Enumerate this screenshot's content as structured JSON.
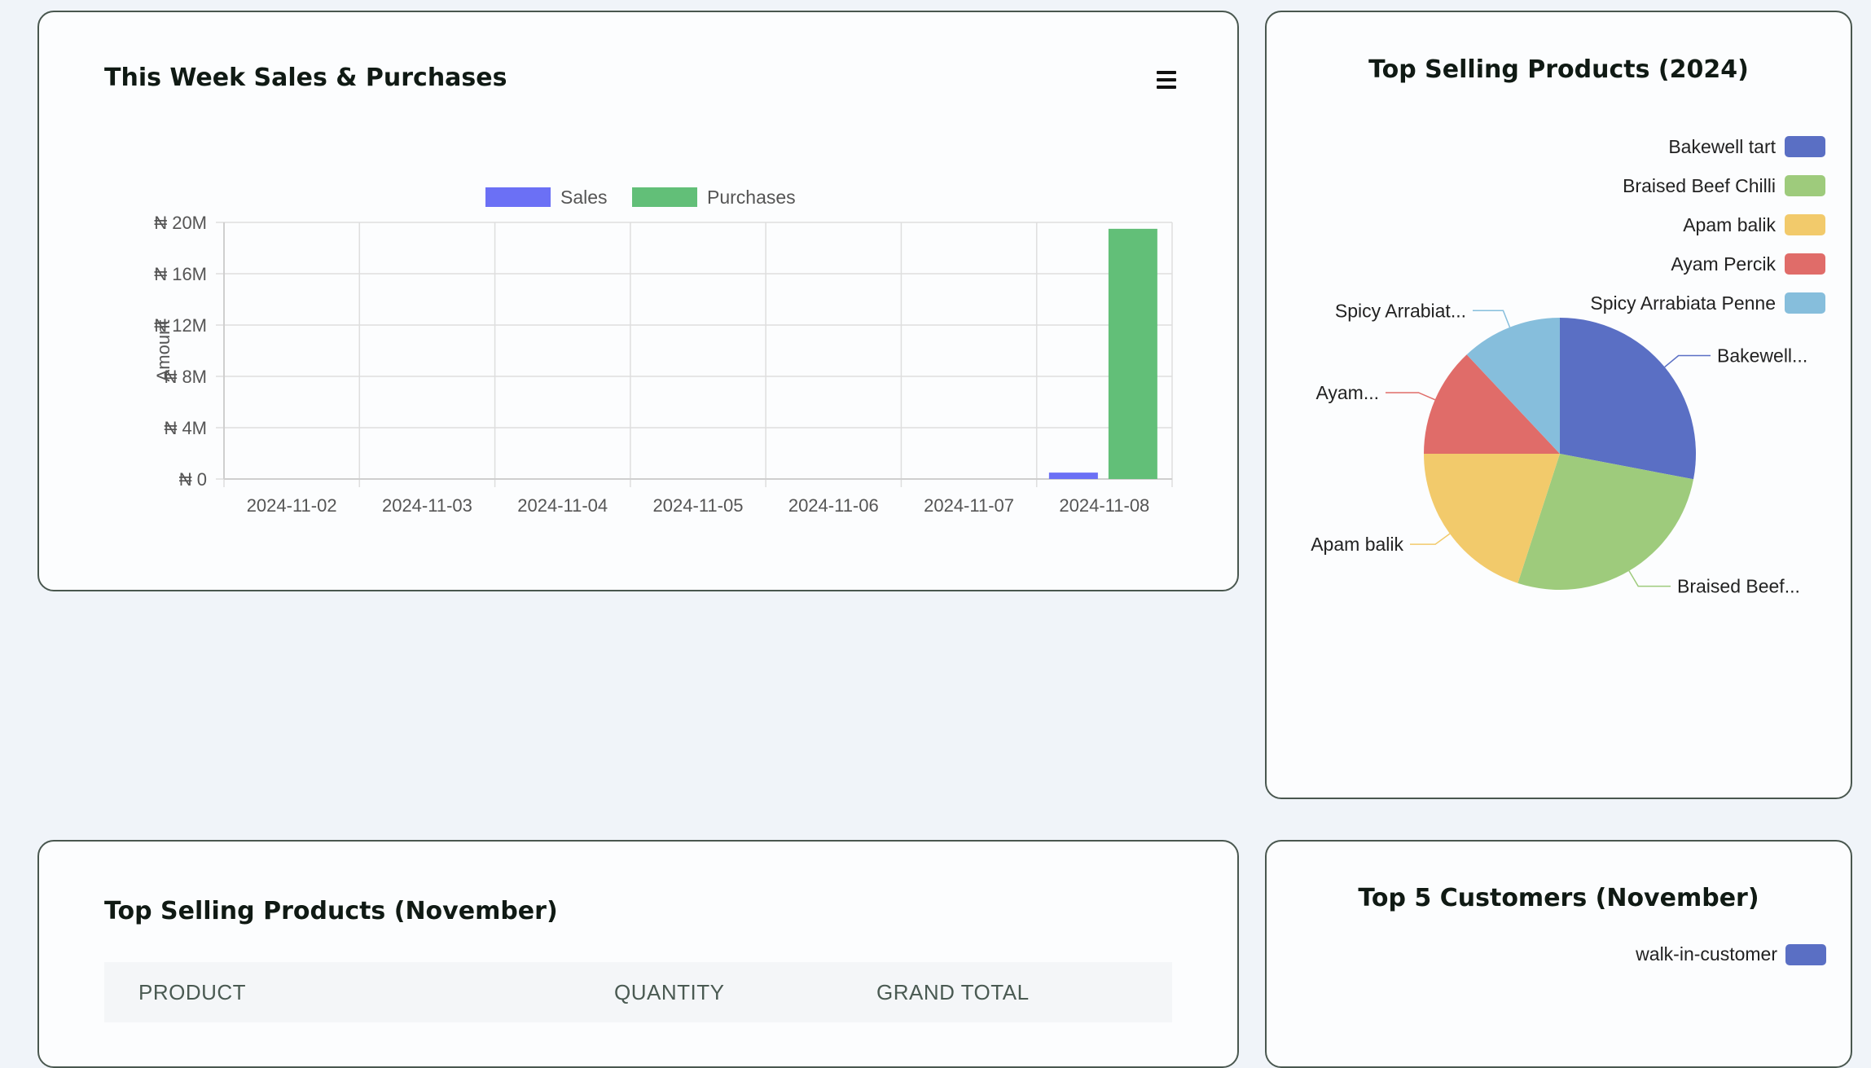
{
  "sales_card": {
    "title": "This Week Sales & Purchases",
    "menu_icon": "hamburger-menu-icon"
  },
  "top_year_card": {
    "title": "Top Selling Products (2024)"
  },
  "top_month_card": {
    "title": "Top Selling Products (November)",
    "columns": [
      "PRODUCT",
      "QUANTITY",
      "GRAND TOTAL"
    ]
  },
  "customers_card": {
    "title": "Top 5 Customers (November)",
    "legend": [
      {
        "label": "walk-in-customer",
        "color": "#5a6fc4"
      }
    ]
  },
  "chart_data": [
    {
      "type": "bar",
      "ylabel": "Amount",
      "ylim": [
        0,
        20000000
      ],
      "yticks": [
        "₦ 0",
        "₦ 4M",
        "₦ 8M",
        "₦ 12M",
        "₦ 16M",
        "₦ 20M"
      ],
      "categories": [
        "2024-11-02",
        "2024-11-03",
        "2024-11-04",
        "2024-11-05",
        "2024-11-06",
        "2024-11-07",
        "2024-11-08"
      ],
      "legend_position": "top",
      "grid": true,
      "series": [
        {
          "name": "Sales",
          "color": "#6b70f5",
          "values": [
            0,
            0,
            0,
            0,
            0,
            0,
            500000
          ]
        },
        {
          "name": "Purchases",
          "color": "#62bf78",
          "values": [
            0,
            0,
            0,
            0,
            0,
            0,
            19500000
          ]
        }
      ]
    },
    {
      "type": "pie",
      "legend_position": "top-right",
      "slices": [
        {
          "name": "Bakewell tart",
          "label": "Bakewell...",
          "value": 28,
          "color": "#5a6fc4"
        },
        {
          "name": "Braised Beef Chilli",
          "label": "Braised Beef...",
          "value": 27,
          "color": "#9ecb7c"
        },
        {
          "name": "Apam balik",
          "label": "Apam balik",
          "value": 20,
          "color": "#f2ca6b"
        },
        {
          "name": "Ayam Percik",
          "label": "Ayam...",
          "value": 13,
          "color": "#e06c69"
        },
        {
          "name": "Spicy Arrabiata Penne",
          "label": "Spicy Arrabiat...",
          "value": 12,
          "color": "#86bedc"
        }
      ]
    }
  ]
}
